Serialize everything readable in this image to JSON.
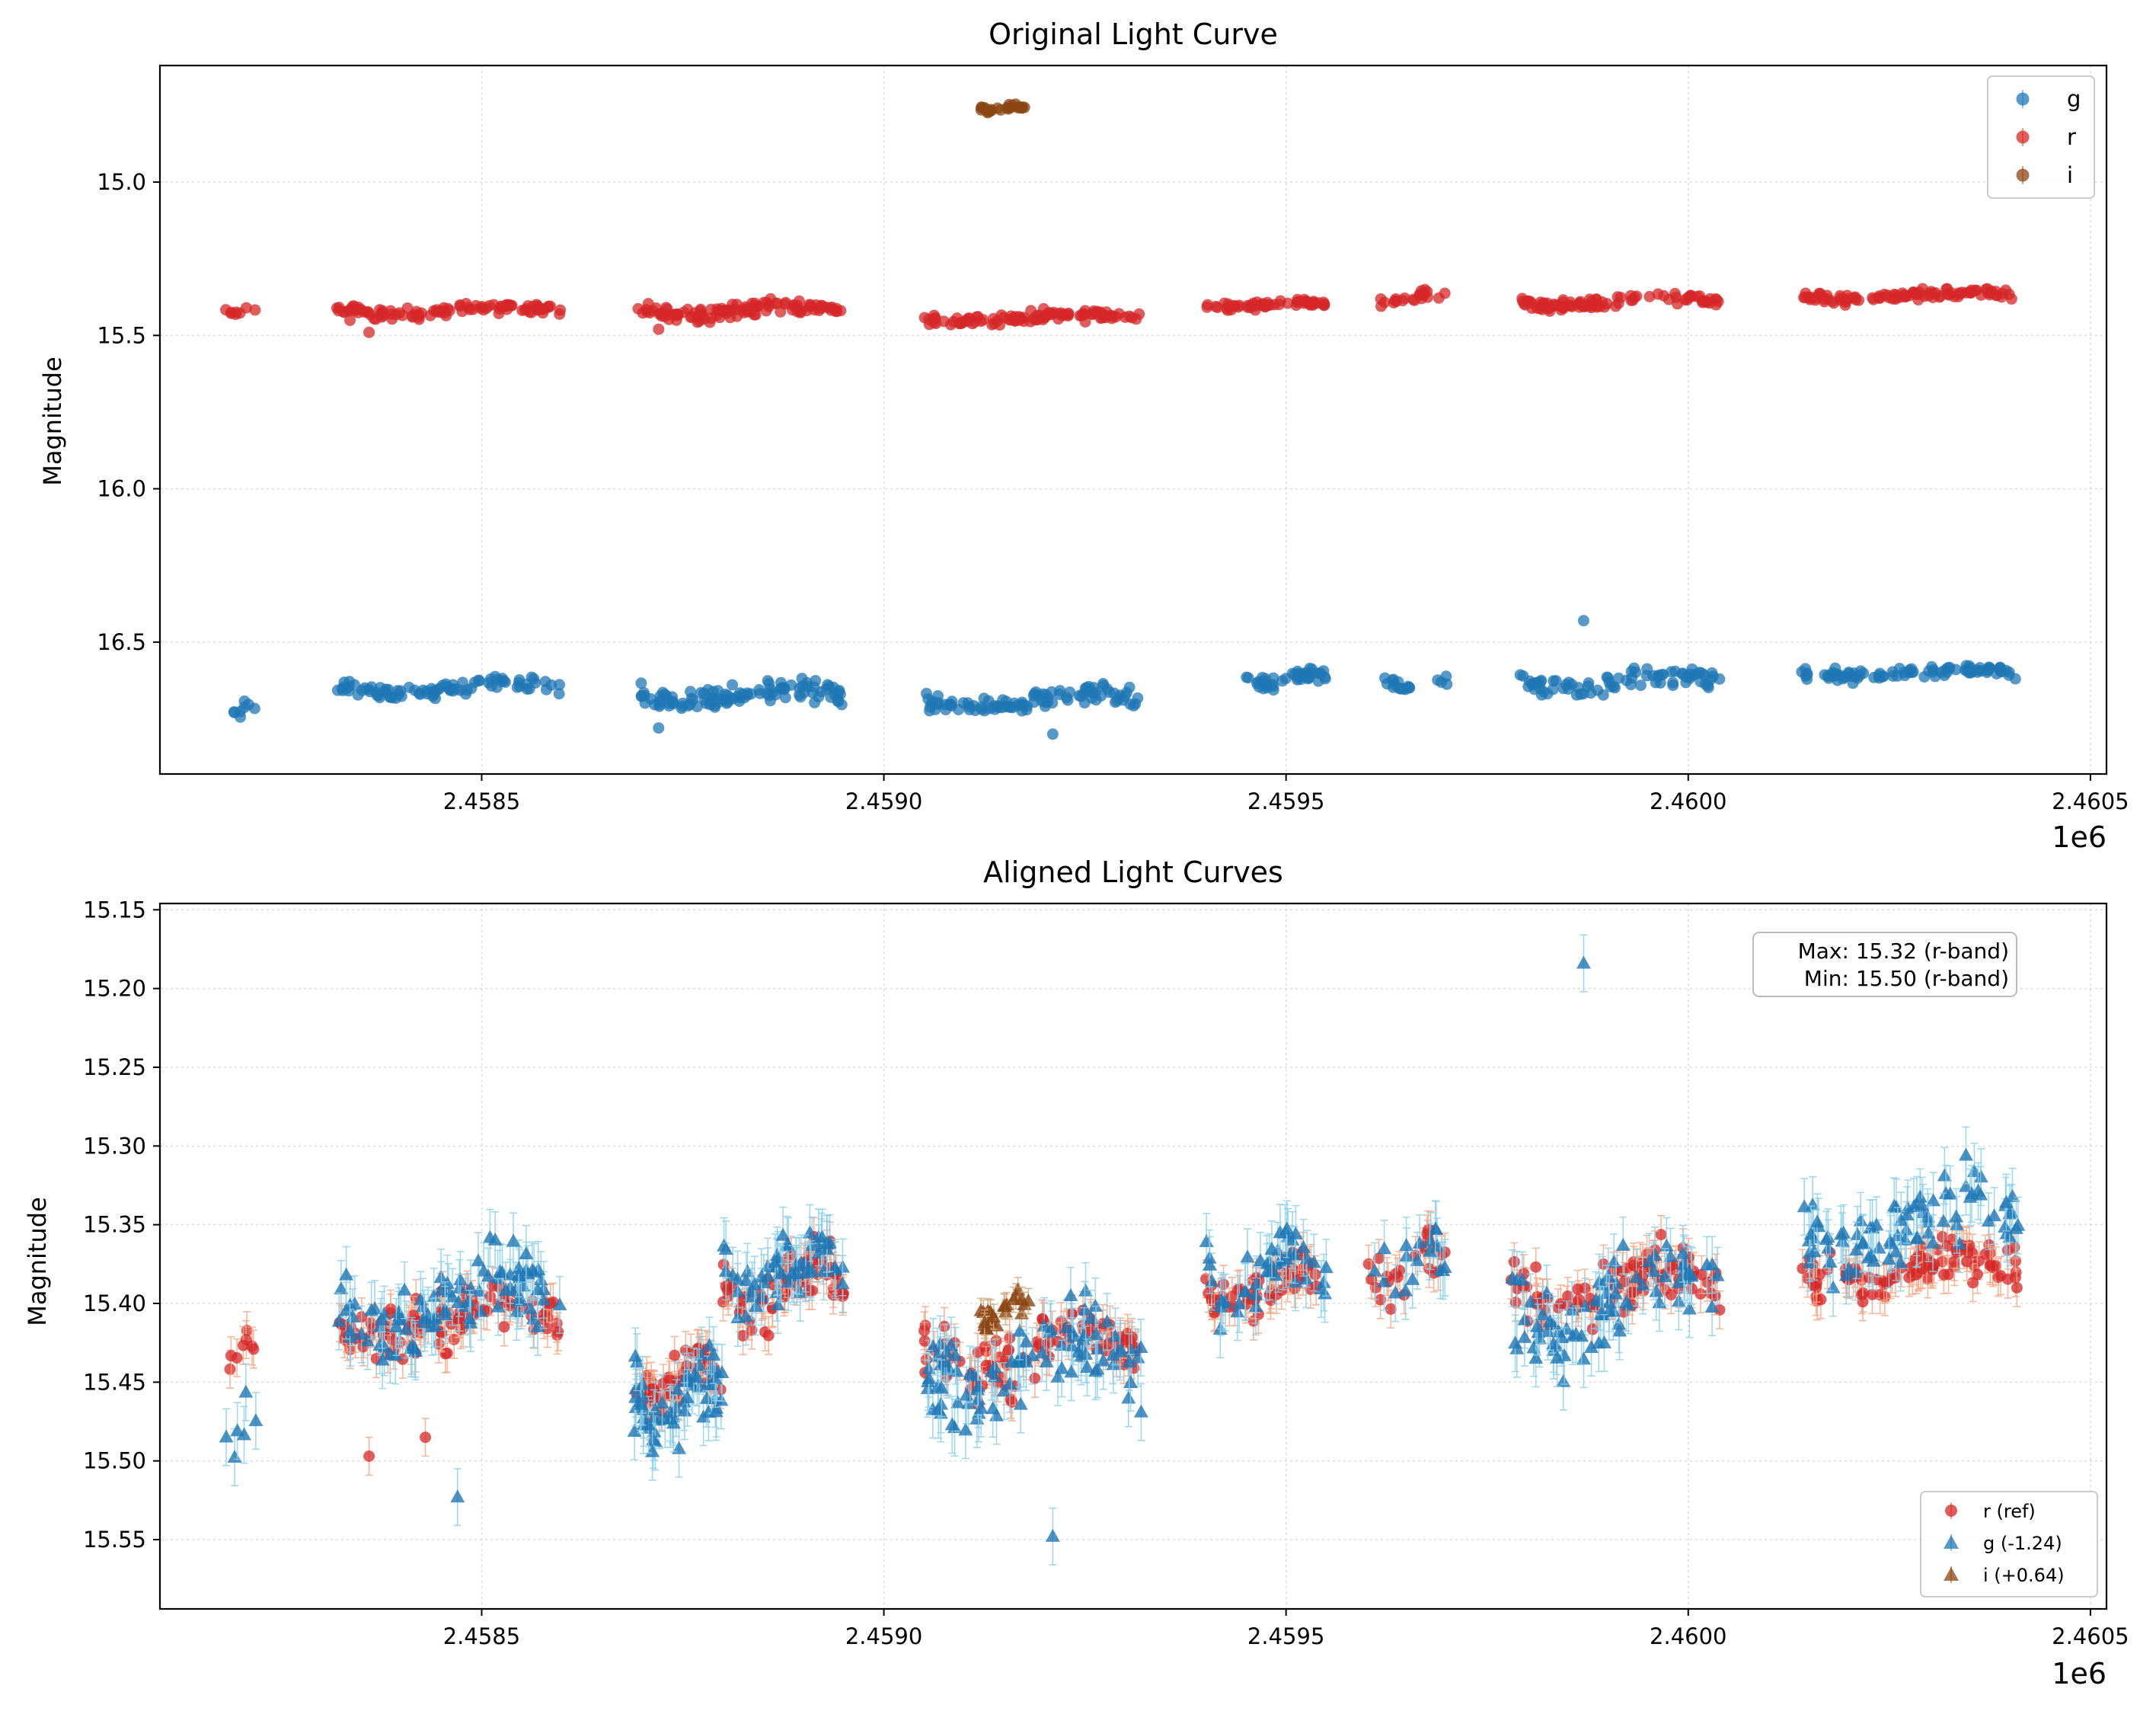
{
  "chart_data": [
    {
      "type": "scatter",
      "title": "Original Light Curve",
      "ylabel": "Magnitude",
      "xlabel": "",
      "x_offset_label": "1e6",
      "xlim": [
        2.4581,
        2.46052
      ],
      "ylim": [
        16.93,
        14.62
      ],
      "y_inverted": true,
      "x_ticks": [
        2.4585,
        2.459,
        2.4595,
        2.46,
        2.4605
      ],
      "x_tick_labels": [
        "2.4585",
        "2.4590",
        "2.4595",
        "2.4600",
        "2.4605"
      ],
      "y_ticks": [
        15.0,
        15.5,
        16.0,
        16.5
      ],
      "y_tick_labels": [
        "15.0",
        "15.5",
        "16.0",
        "16.5"
      ],
      "grid": true,
      "legend_position": "top-right",
      "legend": [
        "g",
        "r",
        "i"
      ],
      "series": [
        {
          "name": "g",
          "marker": "circle",
          "color": "#1f77b4",
          "segments": [
            {
              "x": [
                2.45818,
                2.45822
              ],
              "base": 16.72,
              "amp": 0.03,
              "n": 8
            },
            {
              "x": [
                2.45832,
                2.4586
              ],
              "base": 16.65,
              "amp": 0.04,
              "n": 90
            },
            {
              "x": [
                2.45869,
                2.45895
              ],
              "base": 16.67,
              "amp": 0.06,
              "n": 110
            },
            {
              "x": [
                2.45905,
                2.45932
              ],
              "base": 16.69,
              "amp": 0.05,
              "n": 100
            },
            {
              "x": [
                2.45945,
                2.45955
              ],
              "base": 16.62,
              "amp": 0.04,
              "n": 45
            },
            {
              "x": [
                2.45962,
                2.4597
              ],
              "base": 16.63,
              "amp": 0.04,
              "n": 18
            },
            {
              "x": [
                2.45979,
                2.46004
              ],
              "base": 16.63,
              "amp": 0.05,
              "n": 80
            },
            {
              "x": [
                2.46014,
                2.46041
              ],
              "base": 16.6,
              "amp": 0.03,
              "n": 90
            }
          ],
          "outliers": [
            {
              "x": 2.45987,
              "y": 16.43
            },
            {
              "x": 2.45872,
              "y": 16.78
            },
            {
              "x": 2.45921,
              "y": 16.8
            }
          ]
        },
        {
          "name": "r",
          "marker": "circle",
          "color": "#d62728",
          "segments": [
            {
              "x": [
                2.45818,
                2.45822
              ],
              "base": 15.42,
              "amp": 0.02,
              "n": 8
            },
            {
              "x": [
                2.45832,
                2.4586
              ],
              "base": 15.42,
              "amp": 0.03,
              "n": 100
            },
            {
              "x": [
                2.45869,
                2.45895
              ],
              "base": 15.42,
              "amp": 0.04,
              "n": 110
            },
            {
              "x": [
                2.45905,
                2.45932
              ],
              "base": 15.44,
              "amp": 0.03,
              "n": 100
            },
            {
              "x": [
                2.4594,
                2.45955
              ],
              "base": 15.4,
              "amp": 0.02,
              "n": 55
            },
            {
              "x": [
                2.4596,
                2.4597
              ],
              "base": 15.38,
              "amp": 0.03,
              "n": 22
            },
            {
              "x": [
                2.45979,
                2.46004
              ],
              "base": 15.39,
              "amp": 0.03,
              "n": 90
            },
            {
              "x": [
                2.46014,
                2.46041
              ],
              "base": 15.37,
              "amp": 0.03,
              "n": 100
            }
          ],
          "outliers": [
            {
              "x": 2.45836,
              "y": 15.49
            },
            {
              "x": 2.45872,
              "y": 15.48
            }
          ]
        },
        {
          "name": "i",
          "marker": "circle",
          "color": "#8b4513",
          "segments": [
            {
              "x": [
                2.45912,
                2.45918
              ],
              "base": 14.76,
              "amp": 0.015,
              "n": 25
            }
          ],
          "outliers": []
        }
      ]
    },
    {
      "type": "scatter",
      "title": "Aligned Light Curves",
      "ylabel": "Magnitude",
      "xlabel": "",
      "x_offset_label": "1e6",
      "xlim": [
        2.4581,
        2.46052
      ],
      "ylim": [
        15.594,
        15.146
      ],
      "y_inverted": true,
      "x_ticks": [
        2.4585,
        2.459,
        2.4595,
        2.46,
        2.4605
      ],
      "x_tick_labels": [
        "2.4585",
        "2.4590",
        "2.4595",
        "2.4600",
        "2.4605"
      ],
      "y_ticks": [
        15.15,
        15.2,
        15.25,
        15.3,
        15.35,
        15.4,
        15.45,
        15.5,
        15.55
      ],
      "y_tick_labels": [
        "15.15",
        "15.20",
        "15.25",
        "15.30",
        "15.35",
        "15.40",
        "15.45",
        "15.50",
        "15.55"
      ],
      "grid": true,
      "legend_position": "bottom-right",
      "legend": [
        "r (ref)",
        "g (-1.24)",
        "i (+0.64)"
      ],
      "annotation": [
        "Max: 15.32 (r-band)",
        "Min: 15.50 (r-band)"
      ],
      "series": [
        {
          "name": "r (ref)",
          "marker": "circle",
          "color": "#d62728",
          "err_color": "#f4a582",
          "err": 0.012,
          "segments": [
            {
              "x": [
                2.45818,
                2.45822
              ],
              "base": 15.43,
              "amp": 0.02,
              "n": 8
            },
            {
              "x": [
                2.45832,
                2.4586
              ],
              "base": 15.41,
              "amp": 0.03,
              "n": 100
            },
            {
              "x": [
                2.45869,
                2.4588
              ],
              "base": 15.45,
              "amp": 0.03,
              "n": 60
            },
            {
              "x": [
                2.4588,
                2.45895
              ],
              "base": 15.39,
              "amp": 0.03,
              "n": 70
            },
            {
              "x": [
                2.45905,
                2.45932
              ],
              "base": 15.43,
              "amp": 0.03,
              "n": 100
            },
            {
              "x": [
                2.4594,
                2.45955
              ],
              "base": 15.39,
              "amp": 0.025,
              "n": 60
            },
            {
              "x": [
                2.4596,
                2.4597
              ],
              "base": 15.38,
              "amp": 0.03,
              "n": 25
            },
            {
              "x": [
                2.45978,
                2.46004
              ],
              "base": 15.39,
              "amp": 0.03,
              "n": 95
            },
            {
              "x": [
                2.46014,
                2.46041
              ],
              "base": 15.38,
              "amp": 0.025,
              "n": 100
            }
          ],
          "outliers": [
            {
              "x": 2.45836,
              "y": 15.497
            },
            {
              "x": 2.45843,
              "y": 15.485
            }
          ]
        },
        {
          "name": "g (-1.24)",
          "marker": "triangle",
          "color": "#1f77b4",
          "err_color": "#87ceeb",
          "err": 0.018,
          "segments": [
            {
              "x": [
                2.45818,
                2.45822
              ],
              "base": 15.48,
              "amp": 0.025,
              "n": 6
            },
            {
              "x": [
                2.45832,
                2.4586
              ],
              "base": 15.4,
              "amp": 0.04,
              "n": 95
            },
            {
              "x": [
                2.45869,
                2.4588
              ],
              "base": 15.46,
              "amp": 0.04,
              "n": 60
            },
            {
              "x": [
                2.4588,
                2.45895
              ],
              "base": 15.38,
              "amp": 0.035,
              "n": 60
            },
            {
              "x": [
                2.45905,
                2.45932
              ],
              "base": 15.44,
              "amp": 0.045,
              "n": 95
            },
            {
              "x": [
                2.4594,
                2.45955
              ],
              "base": 15.38,
              "amp": 0.04,
              "n": 45
            },
            {
              "x": [
                2.4596,
                2.4597
              ],
              "base": 15.38,
              "amp": 0.04,
              "n": 18
            },
            {
              "x": [
                2.45978,
                2.46004
              ],
              "base": 15.4,
              "amp": 0.05,
              "n": 80
            },
            {
              "x": [
                2.46014,
                2.46041
              ],
              "base": 15.35,
              "amp": 0.04,
              "n": 85
            }
          ],
          "outliers": [
            {
              "x": 2.45987,
              "y": 15.184
            },
            {
              "x": 2.45847,
              "y": 15.523
            },
            {
              "x": 2.45921,
              "y": 15.548
            }
          ]
        },
        {
          "name": "i (+0.64)",
          "marker": "triangle",
          "color": "#8b4513",
          "err_color": "#d2a679",
          "err": 0.008,
          "segments": [
            {
              "x": [
                2.45912,
                2.45918
              ],
              "base": 15.405,
              "amp": 0.015,
              "n": 25
            }
          ],
          "outliers": []
        }
      ]
    }
  ]
}
